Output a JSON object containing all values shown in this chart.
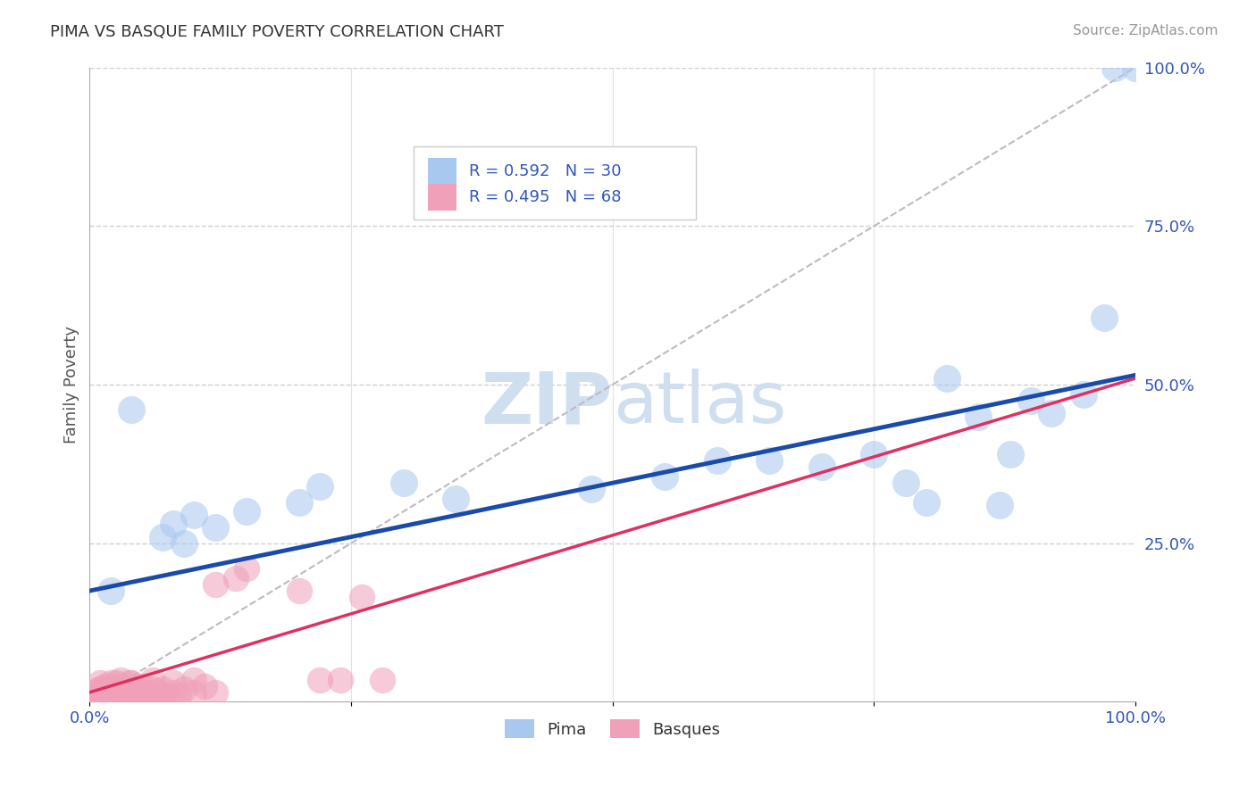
{
  "title": "PIMA VS BASQUE FAMILY POVERTY CORRELATION CHART",
  "source": "Source: ZipAtlas.com",
  "ylabel": "Family Poverty",
  "xlim": [
    0.0,
    1.0
  ],
  "ylim": [
    0.0,
    1.0
  ],
  "pima_R": 0.592,
  "pima_N": 30,
  "basque_R": 0.495,
  "basque_N": 68,
  "pima_color": "#a8c8f0",
  "basque_color": "#f0a0b8",
  "pima_line_color": "#1a4aaa",
  "basque_line_color": "#e03060",
  "ref_line_color": "#c0b8c8",
  "grid_color": "#d0d0d0",
  "watermark_color": "#d0dff0",
  "tick_label_color": "#3355bb",
  "title_color": "#333333",
  "source_color": "#999999",
  "ylabel_color": "#555555",
  "pima_intercept": 0.175,
  "pima_slope": 0.34,
  "basque_intercept": 0.015,
  "basque_slope": 0.495,
  "pima_points": [
    [
      0.02,
      0.175
    ],
    [
      0.04,
      0.46
    ],
    [
      0.07,
      0.26
    ],
    [
      0.08,
      0.28
    ],
    [
      0.09,
      0.25
    ],
    [
      0.1,
      0.295
    ],
    [
      0.12,
      0.275
    ],
    [
      0.15,
      0.3
    ],
    [
      0.2,
      0.315
    ],
    [
      0.22,
      0.34
    ],
    [
      0.3,
      0.345
    ],
    [
      0.35,
      0.32
    ],
    [
      0.48,
      0.335
    ],
    [
      0.55,
      0.355
    ],
    [
      0.6,
      0.38
    ],
    [
      0.65,
      0.38
    ],
    [
      0.7,
      0.37
    ],
    [
      0.75,
      0.39
    ],
    [
      0.78,
      0.345
    ],
    [
      0.8,
      0.315
    ],
    [
      0.82,
      0.51
    ],
    [
      0.85,
      0.45
    ],
    [
      0.87,
      0.31
    ],
    [
      0.88,
      0.39
    ],
    [
      0.9,
      0.475
    ],
    [
      0.92,
      0.455
    ],
    [
      0.95,
      0.485
    ],
    [
      0.97,
      0.605
    ],
    [
      0.98,
      1.0
    ],
    [
      1.0,
      1.0
    ]
  ],
  "basque_points": [
    [
      0.005,
      0.005
    ],
    [
      0.007,
      0.01
    ],
    [
      0.008,
      0.015
    ],
    [
      0.009,
      0.02
    ],
    [
      0.01,
      0.005
    ],
    [
      0.01,
      0.01
    ],
    [
      0.01,
      0.02
    ],
    [
      0.01,
      0.03
    ],
    [
      0.012,
      0.005
    ],
    [
      0.012,
      0.015
    ],
    [
      0.014,
      0.01
    ],
    [
      0.015,
      0.005
    ],
    [
      0.015,
      0.015
    ],
    [
      0.015,
      0.025
    ],
    [
      0.016,
      0.005
    ],
    [
      0.017,
      0.01
    ],
    [
      0.018,
      0.02
    ],
    [
      0.02,
      0.005
    ],
    [
      0.02,
      0.01
    ],
    [
      0.02,
      0.02
    ],
    [
      0.02,
      0.03
    ],
    [
      0.022,
      0.005
    ],
    [
      0.022,
      0.015
    ],
    [
      0.024,
      0.01
    ],
    [
      0.025,
      0.005
    ],
    [
      0.025,
      0.02
    ],
    [
      0.025,
      0.03
    ],
    [
      0.027,
      0.01
    ],
    [
      0.028,
      0.015
    ],
    [
      0.03,
      0.005
    ],
    [
      0.03,
      0.015
    ],
    [
      0.03,
      0.025
    ],
    [
      0.03,
      0.035
    ],
    [
      0.032,
      0.01
    ],
    [
      0.035,
      0.02
    ],
    [
      0.038,
      0.03
    ],
    [
      0.04,
      0.005
    ],
    [
      0.04,
      0.015
    ],
    [
      0.04,
      0.03
    ],
    [
      0.042,
      0.01
    ],
    [
      0.045,
      0.02
    ],
    [
      0.05,
      0.005
    ],
    [
      0.05,
      0.01
    ],
    [
      0.05,
      0.025
    ],
    [
      0.055,
      0.015
    ],
    [
      0.06,
      0.01
    ],
    [
      0.06,
      0.02
    ],
    [
      0.06,
      0.035
    ],
    [
      0.065,
      0.015
    ],
    [
      0.07,
      0.005
    ],
    [
      0.07,
      0.02
    ],
    [
      0.075,
      0.01
    ],
    [
      0.08,
      0.015
    ],
    [
      0.08,
      0.03
    ],
    [
      0.085,
      0.01
    ],
    [
      0.09,
      0.02
    ],
    [
      0.1,
      0.015
    ],
    [
      0.1,
      0.035
    ],
    [
      0.11,
      0.025
    ],
    [
      0.12,
      0.015
    ],
    [
      0.12,
      0.185
    ],
    [
      0.14,
      0.195
    ],
    [
      0.15,
      0.21
    ],
    [
      0.2,
      0.175
    ],
    [
      0.22,
      0.035
    ],
    [
      0.24,
      0.035
    ],
    [
      0.26,
      0.165
    ],
    [
      0.28,
      0.035
    ]
  ]
}
